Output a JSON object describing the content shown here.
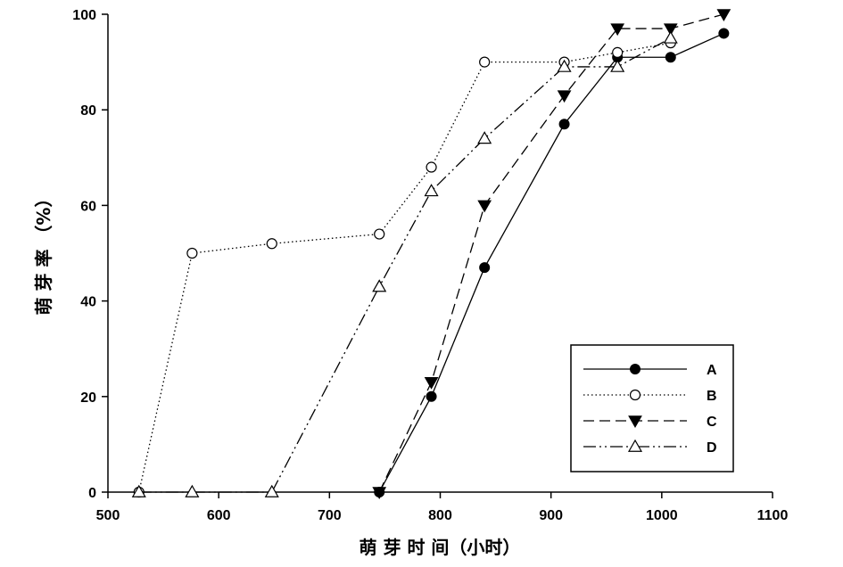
{
  "chart_data": {
    "type": "line",
    "xlabel": "萌 芽 时 间（小时）",
    "ylabel": "萌 芽 率 （%）",
    "xlim": [
      500,
      1100
    ],
    "ylim": [
      0,
      100
    ],
    "xticks": [
      "500",
      "600",
      "700",
      "800",
      "900",
      "1000",
      "1100"
    ],
    "yticks": [
      "0",
      "20",
      "40",
      "60",
      "80",
      "100"
    ],
    "grid": false,
    "legend_position": "bottom-right",
    "series": [
      {
        "name": "A",
        "marker": "filled-circle",
        "line_style": "solid",
        "x": [
          745,
          792,
          840,
          912,
          960,
          1008,
          1056
        ],
        "y": [
          0,
          20,
          47,
          77,
          91,
          91,
          96
        ]
      },
      {
        "name": "B",
        "marker": "open-circle",
        "line_style": "dotted",
        "x": [
          528,
          576,
          648,
          745,
          792,
          840,
          912,
          960,
          1008
        ],
        "y": [
          0,
          50,
          52,
          54,
          68,
          90,
          90,
          92,
          94
        ]
      },
      {
        "name": "C",
        "marker": "filled-triangle-down",
        "line_style": "dashed",
        "x": [
          745,
          792,
          840,
          912,
          960,
          1008,
          1056
        ],
        "y": [
          0,
          23,
          60,
          83,
          97,
          97,
          100
        ]
      },
      {
        "name": "D",
        "marker": "open-triangle-up",
        "line_style": "dash-dot-dot",
        "x": [
          528,
          576,
          648,
          745,
          792,
          840,
          912,
          960,
          1008
        ],
        "y": [
          0,
          0,
          0,
          43,
          63,
          74,
          89,
          89,
          95
        ]
      }
    ]
  }
}
